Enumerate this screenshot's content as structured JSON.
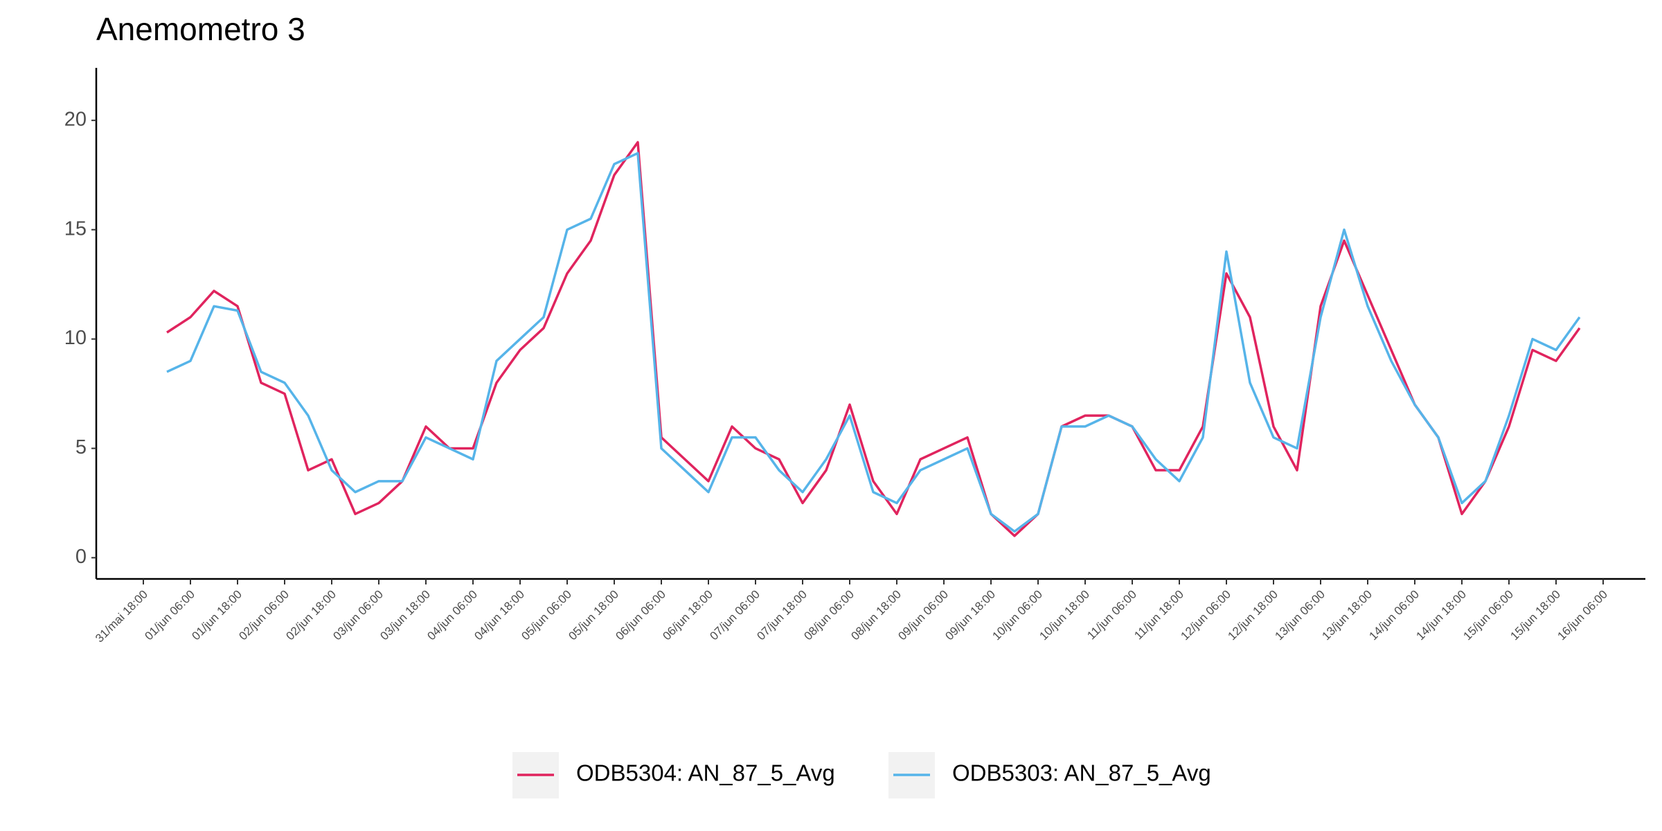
{
  "chart_data": {
    "type": "line",
    "title": "Anemometro 3",
    "x": [
      "31/mai 18:00",
      null,
      "01/jun 06:00",
      null,
      "01/jun 18:00",
      null,
      "02/jun 06:00",
      null,
      "02/jun 18:00",
      null,
      "03/jun 06:00",
      null,
      "03/jun 18:00",
      null,
      "04/jun 06:00",
      null,
      "04/jun 18:00",
      null,
      "05/jun 06:00",
      null,
      "05/jun 18:00",
      null,
      "06/jun 06:00",
      null,
      "06/jun 18:00",
      null,
      "07/jun 06:00",
      null,
      "07/jun 18:00",
      null,
      "08/jun 06:00",
      null,
      "08/jun 18:00",
      null,
      "09/jun 06:00",
      null,
      "09/jun 18:00",
      null,
      "10/jun 06:00",
      null,
      "10/jun 18:00",
      null,
      "11/jun 06:00",
      null,
      "11/jun 18:00",
      null,
      "12/jun 06:00",
      null,
      "12/jun 18:00",
      null,
      "13/jun 06:00",
      null,
      "13/jun 18:00",
      null,
      "14/jun 06:00",
      null,
      "14/jun 18:00",
      null,
      "15/jun 06:00",
      null,
      "15/jun 18:00",
      null,
      "16/jun 06:00"
    ],
    "series": [
      {
        "name": "ODB5304: AN_87_5_Avg",
        "color": "#e0245e",
        "values": [
          null,
          10.3,
          11.0,
          12.2,
          11.5,
          8.0,
          7.5,
          4.0,
          4.5,
          2.0,
          2.5,
          3.5,
          6.0,
          5.0,
          5.0,
          8.0,
          9.5,
          10.5,
          13.0,
          14.5,
          17.5,
          19.0,
          5.5,
          4.5,
          3.5,
          6.0,
          5.0,
          4.5,
          2.5,
          4.0,
          7.0,
          3.5,
          2.0,
          4.5,
          5.0,
          5.5,
          2.0,
          1.0,
          2.0,
          6.0,
          6.5,
          6.5,
          6.0,
          4.0,
          4.0,
          6.0,
          13.0,
          11.0,
          6.0,
          4.0,
          11.5,
          14.5,
          12.0,
          9.5,
          7.0,
          5.5,
          2.0,
          3.5,
          6.0,
          9.5,
          9.0,
          10.5,
          null
        ]
      },
      {
        "name": "ODB5303: AN_87_5_Avg",
        "color": "#56b4e9",
        "values": [
          null,
          8.5,
          9.0,
          11.5,
          11.3,
          8.5,
          8.0,
          6.5,
          4.0,
          3.0,
          3.5,
          3.5,
          5.5,
          5.0,
          4.5,
          9.0,
          10.0,
          11.0,
          15.0,
          15.5,
          18.0,
          18.5,
          5.0,
          4.0,
          3.0,
          5.5,
          5.5,
          4.0,
          3.0,
          4.5,
          6.5,
          3.0,
          2.5,
          4.0,
          4.5,
          5.0,
          2.0,
          1.2,
          2.0,
          6.0,
          6.0,
          6.5,
          6.0,
          4.5,
          3.5,
          5.5,
          14.0,
          8.0,
          5.5,
          5.0,
          11.0,
          15.0,
          11.5,
          9.0,
          7.0,
          5.5,
          2.5,
          3.5,
          6.5,
          10.0,
          9.5,
          11.0,
          null
        ]
      }
    ],
    "ylim": [
      -0.97,
      22.4
    ],
    "yticks": [
      0,
      5,
      10,
      15,
      20
    ],
    "grid": false,
    "legend": "bottom"
  }
}
